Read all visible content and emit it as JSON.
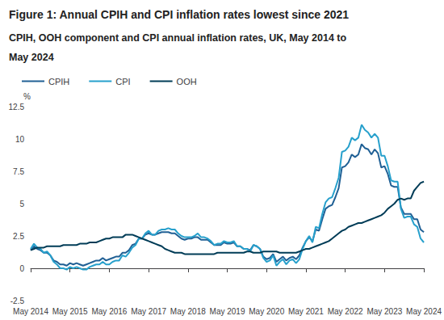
{
  "chart_data": {
    "type": "line",
    "title": "Figure 1: Annual CPIH and CPI inflation rates lowest since 2021",
    "subtitle": "CPIH, OOH component and CPI annual inflation rates, UK, May 2014 to May 2024",
    "y_label": "%",
    "categories": [
      "May 2014",
      null,
      null,
      null,
      null,
      null,
      null,
      null,
      null,
      null,
      null,
      null,
      "May 2015",
      null,
      null,
      null,
      null,
      null,
      null,
      null,
      null,
      null,
      null,
      null,
      "May 2016",
      null,
      null,
      null,
      null,
      null,
      null,
      null,
      null,
      null,
      null,
      null,
      "May 2017",
      null,
      null,
      null,
      null,
      null,
      null,
      null,
      null,
      null,
      null,
      null,
      "May 2018",
      null,
      null,
      null,
      null,
      null,
      null,
      null,
      null,
      null,
      null,
      null,
      "May 2019",
      null,
      null,
      null,
      null,
      null,
      null,
      null,
      null,
      null,
      null,
      null,
      "May 2020",
      null,
      null,
      null,
      null,
      null,
      null,
      null,
      null,
      null,
      null,
      null,
      "May 2021",
      null,
      null,
      null,
      null,
      null,
      null,
      null,
      null,
      null,
      null,
      null,
      "May 2022",
      null,
      null,
      null,
      null,
      null,
      null,
      null,
      null,
      null,
      null,
      null,
      "May 2023",
      null,
      null,
      null,
      null,
      null,
      null,
      null,
      null,
      null,
      null,
      null,
      "May 2024"
    ],
    "series": [
      {
        "name": "CPIH",
        "color": "#206095",
        "values": [
          1.4,
          1.7,
          1.5,
          1.4,
          1.2,
          1.2,
          1.0,
          0.6,
          0.5,
          0.3,
          0.3,
          0.2,
          0.4,
          0.3,
          0.4,
          0.3,
          0.2,
          0.3,
          0.4,
          0.5,
          0.6,
          0.6,
          0.8,
          0.6,
          0.7,
          0.8,
          0.9,
          0.9,
          1.2,
          1.2,
          1.4,
          1.8,
          1.9,
          2.3,
          2.3,
          2.6,
          2.7,
          2.6,
          2.6,
          2.7,
          2.8,
          2.8,
          2.8,
          2.7,
          2.7,
          2.5,
          2.3,
          2.2,
          2.3,
          2.3,
          2.4,
          2.4,
          2.2,
          2.2,
          2.2,
          2.0,
          1.8,
          1.8,
          1.8,
          2.0,
          1.9,
          1.9,
          2.0,
          1.7,
          1.7,
          1.5,
          1.5,
          1.4,
          1.8,
          1.7,
          1.5,
          0.9,
          0.7,
          0.8,
          1.1,
          0.5,
          0.7,
          0.9,
          0.6,
          0.8,
          0.9,
          0.7,
          1.0,
          1.6,
          2.1,
          2.4,
          2.1,
          3.0,
          2.9,
          3.8,
          4.6,
          4.8,
          4.9,
          5.5,
          6.2,
          7.8,
          7.9,
          8.2,
          8.8,
          8.6,
          8.8,
          9.6,
          9.3,
          9.2,
          8.8,
          9.2,
          8.9,
          7.8,
          7.9,
          7.3,
          6.4,
          6.3,
          6.3,
          4.7,
          4.2,
          4.2,
          4.2,
          3.8,
          3.8,
          3.0,
          2.8
        ]
      },
      {
        "name": "CPI",
        "color": "#27a0cc",
        "values": [
          1.5,
          1.9,
          1.6,
          1.5,
          1.2,
          1.3,
          1.0,
          0.5,
          0.3,
          0.0,
          0.0,
          -0.1,
          0.1,
          0.0,
          0.1,
          0.0,
          -0.1,
          -0.1,
          0.1,
          0.2,
          0.3,
          0.3,
          0.5,
          0.3,
          0.3,
          0.5,
          0.6,
          0.6,
          1.0,
          0.9,
          1.2,
          1.6,
          1.8,
          2.3,
          2.3,
          2.7,
          2.9,
          2.6,
          2.6,
          2.9,
          3.0,
          3.0,
          3.1,
          3.0,
          3.0,
          2.7,
          2.5,
          2.4,
          2.4,
          2.4,
          2.5,
          2.7,
          2.4,
          2.4,
          2.3,
          2.1,
          1.8,
          1.9,
          1.9,
          2.1,
          2.0,
          2.0,
          2.1,
          1.7,
          1.7,
          1.5,
          1.5,
          1.3,
          1.8,
          1.7,
          1.5,
          0.8,
          0.5,
          0.6,
          1.0,
          0.2,
          0.5,
          0.7,
          0.3,
          0.6,
          0.7,
          0.4,
          0.7,
          1.5,
          2.1,
          2.5,
          2.0,
          3.2,
          3.1,
          4.2,
          5.1,
          5.4,
          5.5,
          6.2,
          7.0,
          9.0,
          9.1,
          9.4,
          10.1,
          9.9,
          10.1,
          11.1,
          10.7,
          10.5,
          10.1,
          10.4,
          10.1,
          8.7,
          8.7,
          7.9,
          6.8,
          6.7,
          6.7,
          4.6,
          3.9,
          4.0,
          4.0,
          3.4,
          3.2,
          2.3,
          2.0
        ]
      },
      {
        "name": "OOH",
        "color": "#003c57",
        "values": [
          1.4,
          1.5,
          1.6,
          1.6,
          1.6,
          1.7,
          1.7,
          1.7,
          1.7,
          1.7,
          1.8,
          1.8,
          1.8,
          1.8,
          1.8,
          1.9,
          1.9,
          1.9,
          2.0,
          2.0,
          2.0,
          2.1,
          2.2,
          2.3,
          2.3,
          2.4,
          2.4,
          2.4,
          2.4,
          2.6,
          2.6,
          2.6,
          2.5,
          2.4,
          2.3,
          2.2,
          2.1,
          2.0,
          1.9,
          1.8,
          1.7,
          1.5,
          1.4,
          1.3,
          1.2,
          1.2,
          1.2,
          1.1,
          1.1,
          1.1,
          1.1,
          1.1,
          1.1,
          1.1,
          1.1,
          1.1,
          1.1,
          1.2,
          1.2,
          1.2,
          1.2,
          1.2,
          1.2,
          1.2,
          1.2,
          1.2,
          1.3,
          1.3,
          1.2,
          1.2,
          1.2,
          1.3,
          1.3,
          1.3,
          1.3,
          1.3,
          1.2,
          1.2,
          1.2,
          1.2,
          1.2,
          1.2,
          1.3,
          1.4,
          1.5,
          1.5,
          1.6,
          1.7,
          1.8,
          1.9,
          2.0,
          2.1,
          2.3,
          2.5,
          2.7,
          2.9,
          3.0,
          3.2,
          3.3,
          3.4,
          3.5,
          3.5,
          3.6,
          3.7,
          3.8,
          3.9,
          4.0,
          4.1,
          4.3,
          4.6,
          4.8,
          5.0,
          5.3,
          5.4,
          5.3,
          5.4,
          5.4,
          6.0,
          6.3,
          6.6,
          6.7
        ]
      }
    ],
    "ylim": [
      -2.5,
      12.5
    ],
    "yticks": [
      -2.5,
      0,
      2.5,
      5,
      7.5,
      10,
      12.5
    ],
    "grid": false,
    "legend": "top-left"
  }
}
